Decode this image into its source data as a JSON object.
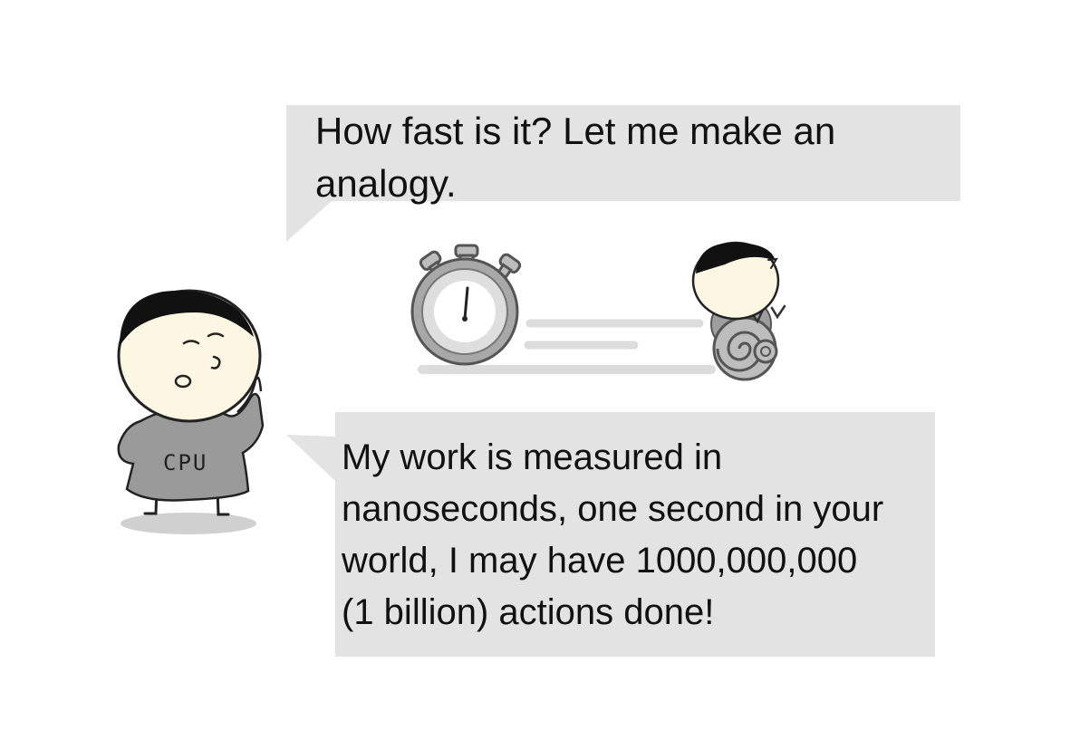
{
  "speech_top": {
    "text": "How fast is it? Let me make an\nanalogy."
  },
  "speech_bottom": {
    "text": "My work is measured in\nnanoseconds, one second in your\nworld, I may have 1000,000,000\n(1 billion) actions done!"
  },
  "character": {
    "shirt_label": "CPU"
  },
  "colors": {
    "bubble": "#e3e3e3",
    "face": "#fdf6e3",
    "hair": "#111111",
    "shirt": "#9a9a9a",
    "speed_lines": "#dcdcdc"
  },
  "icons": [
    "stopwatch-icon",
    "snail-icon"
  ]
}
